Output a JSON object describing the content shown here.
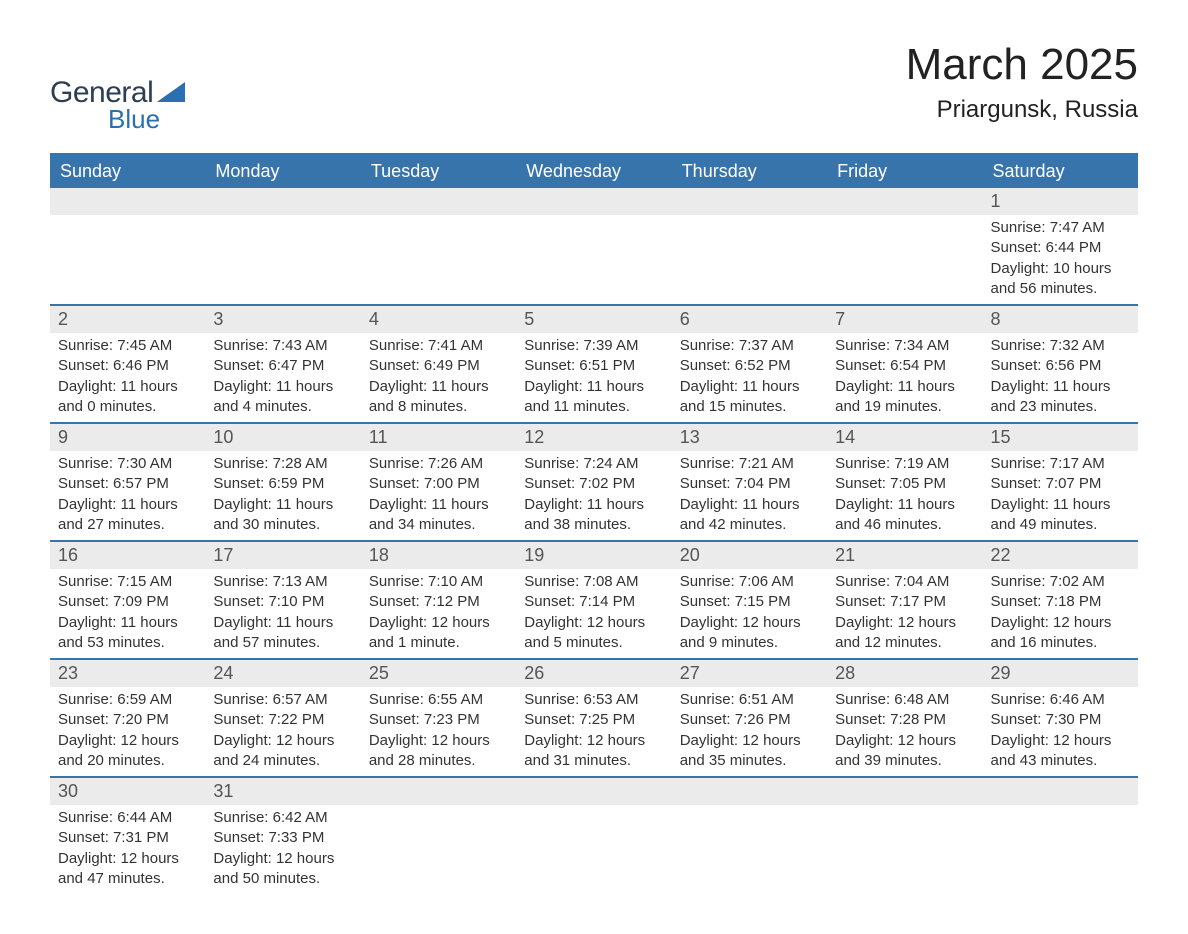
{
  "brand": {
    "text_general": "General",
    "text_blue": "Blue",
    "logo_color": "#2b6fb0",
    "text_dark_color": "#2c3e50"
  },
  "header": {
    "month_title": "March 2025",
    "location": "Priargunsk, Russia"
  },
  "colors": {
    "header_row_bg": "#3874ac",
    "header_row_text": "#ffffff",
    "day_num_bg": "#ebebeb",
    "day_num_text": "#555555",
    "body_text": "#333333",
    "row_divider": "#3874ac",
    "page_bg": "#ffffff"
  },
  "typography": {
    "month_title_fontsize": 44,
    "location_fontsize": 24,
    "weekday_header_fontsize": 18,
    "day_number_fontsize": 18,
    "day_info_fontsize": 15,
    "font_family": "Arial"
  },
  "calendar": {
    "type": "table",
    "columns": [
      "Sunday",
      "Monday",
      "Tuesday",
      "Wednesday",
      "Thursday",
      "Friday",
      "Saturday"
    ],
    "weeks": [
      [
        null,
        null,
        null,
        null,
        null,
        null,
        {
          "day": "1",
          "sunrise": "Sunrise: 7:47 AM",
          "sunset": "Sunset: 6:44 PM",
          "daylight1": "Daylight: 10 hours",
          "daylight2": "and 56 minutes."
        }
      ],
      [
        {
          "day": "2",
          "sunrise": "Sunrise: 7:45 AM",
          "sunset": "Sunset: 6:46 PM",
          "daylight1": "Daylight: 11 hours",
          "daylight2": "and 0 minutes."
        },
        {
          "day": "3",
          "sunrise": "Sunrise: 7:43 AM",
          "sunset": "Sunset: 6:47 PM",
          "daylight1": "Daylight: 11 hours",
          "daylight2": "and 4 minutes."
        },
        {
          "day": "4",
          "sunrise": "Sunrise: 7:41 AM",
          "sunset": "Sunset: 6:49 PM",
          "daylight1": "Daylight: 11 hours",
          "daylight2": "and 8 minutes."
        },
        {
          "day": "5",
          "sunrise": "Sunrise: 7:39 AM",
          "sunset": "Sunset: 6:51 PM",
          "daylight1": "Daylight: 11 hours",
          "daylight2": "and 11 minutes."
        },
        {
          "day": "6",
          "sunrise": "Sunrise: 7:37 AM",
          "sunset": "Sunset: 6:52 PM",
          "daylight1": "Daylight: 11 hours",
          "daylight2": "and 15 minutes."
        },
        {
          "day": "7",
          "sunrise": "Sunrise: 7:34 AM",
          "sunset": "Sunset: 6:54 PM",
          "daylight1": "Daylight: 11 hours",
          "daylight2": "and 19 minutes."
        },
        {
          "day": "8",
          "sunrise": "Sunrise: 7:32 AM",
          "sunset": "Sunset: 6:56 PM",
          "daylight1": "Daylight: 11 hours",
          "daylight2": "and 23 minutes."
        }
      ],
      [
        {
          "day": "9",
          "sunrise": "Sunrise: 7:30 AM",
          "sunset": "Sunset: 6:57 PM",
          "daylight1": "Daylight: 11 hours",
          "daylight2": "and 27 minutes."
        },
        {
          "day": "10",
          "sunrise": "Sunrise: 7:28 AM",
          "sunset": "Sunset: 6:59 PM",
          "daylight1": "Daylight: 11 hours",
          "daylight2": "and 30 minutes."
        },
        {
          "day": "11",
          "sunrise": "Sunrise: 7:26 AM",
          "sunset": "Sunset: 7:00 PM",
          "daylight1": "Daylight: 11 hours",
          "daylight2": "and 34 minutes."
        },
        {
          "day": "12",
          "sunrise": "Sunrise: 7:24 AM",
          "sunset": "Sunset: 7:02 PM",
          "daylight1": "Daylight: 11 hours",
          "daylight2": "and 38 minutes."
        },
        {
          "day": "13",
          "sunrise": "Sunrise: 7:21 AM",
          "sunset": "Sunset: 7:04 PM",
          "daylight1": "Daylight: 11 hours",
          "daylight2": "and 42 minutes."
        },
        {
          "day": "14",
          "sunrise": "Sunrise: 7:19 AM",
          "sunset": "Sunset: 7:05 PM",
          "daylight1": "Daylight: 11 hours",
          "daylight2": "and 46 minutes."
        },
        {
          "day": "15",
          "sunrise": "Sunrise: 7:17 AM",
          "sunset": "Sunset: 7:07 PM",
          "daylight1": "Daylight: 11 hours",
          "daylight2": "and 49 minutes."
        }
      ],
      [
        {
          "day": "16",
          "sunrise": "Sunrise: 7:15 AM",
          "sunset": "Sunset: 7:09 PM",
          "daylight1": "Daylight: 11 hours",
          "daylight2": "and 53 minutes."
        },
        {
          "day": "17",
          "sunrise": "Sunrise: 7:13 AM",
          "sunset": "Sunset: 7:10 PM",
          "daylight1": "Daylight: 11 hours",
          "daylight2": "and 57 minutes."
        },
        {
          "day": "18",
          "sunrise": "Sunrise: 7:10 AM",
          "sunset": "Sunset: 7:12 PM",
          "daylight1": "Daylight: 12 hours",
          "daylight2": "and 1 minute."
        },
        {
          "day": "19",
          "sunrise": "Sunrise: 7:08 AM",
          "sunset": "Sunset: 7:14 PM",
          "daylight1": "Daylight: 12 hours",
          "daylight2": "and 5 minutes."
        },
        {
          "day": "20",
          "sunrise": "Sunrise: 7:06 AM",
          "sunset": "Sunset: 7:15 PM",
          "daylight1": "Daylight: 12 hours",
          "daylight2": "and 9 minutes."
        },
        {
          "day": "21",
          "sunrise": "Sunrise: 7:04 AM",
          "sunset": "Sunset: 7:17 PM",
          "daylight1": "Daylight: 12 hours",
          "daylight2": "and 12 minutes."
        },
        {
          "day": "22",
          "sunrise": "Sunrise: 7:02 AM",
          "sunset": "Sunset: 7:18 PM",
          "daylight1": "Daylight: 12 hours",
          "daylight2": "and 16 minutes."
        }
      ],
      [
        {
          "day": "23",
          "sunrise": "Sunrise: 6:59 AM",
          "sunset": "Sunset: 7:20 PM",
          "daylight1": "Daylight: 12 hours",
          "daylight2": "and 20 minutes."
        },
        {
          "day": "24",
          "sunrise": "Sunrise: 6:57 AM",
          "sunset": "Sunset: 7:22 PM",
          "daylight1": "Daylight: 12 hours",
          "daylight2": "and 24 minutes."
        },
        {
          "day": "25",
          "sunrise": "Sunrise: 6:55 AM",
          "sunset": "Sunset: 7:23 PM",
          "daylight1": "Daylight: 12 hours",
          "daylight2": "and 28 minutes."
        },
        {
          "day": "26",
          "sunrise": "Sunrise: 6:53 AM",
          "sunset": "Sunset: 7:25 PM",
          "daylight1": "Daylight: 12 hours",
          "daylight2": "and 31 minutes."
        },
        {
          "day": "27",
          "sunrise": "Sunrise: 6:51 AM",
          "sunset": "Sunset: 7:26 PM",
          "daylight1": "Daylight: 12 hours",
          "daylight2": "and 35 minutes."
        },
        {
          "day": "28",
          "sunrise": "Sunrise: 6:48 AM",
          "sunset": "Sunset: 7:28 PM",
          "daylight1": "Daylight: 12 hours",
          "daylight2": "and 39 minutes."
        },
        {
          "day": "29",
          "sunrise": "Sunrise: 6:46 AM",
          "sunset": "Sunset: 7:30 PM",
          "daylight1": "Daylight: 12 hours",
          "daylight2": "and 43 minutes."
        }
      ],
      [
        {
          "day": "30",
          "sunrise": "Sunrise: 6:44 AM",
          "sunset": "Sunset: 7:31 PM",
          "daylight1": "Daylight: 12 hours",
          "daylight2": "and 47 minutes."
        },
        {
          "day": "31",
          "sunrise": "Sunrise: 6:42 AM",
          "sunset": "Sunset: 7:33 PM",
          "daylight1": "Daylight: 12 hours",
          "daylight2": "and 50 minutes."
        },
        null,
        null,
        null,
        null,
        null
      ]
    ]
  }
}
